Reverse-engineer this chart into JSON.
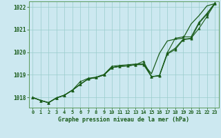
{
  "title": "Graphe pression niveau de la mer (hPa)",
  "ylim": [
    1017.55,
    1022.25
  ],
  "yticks": [
    1018,
    1019,
    1020,
    1021,
    1022
  ],
  "background_color": "#cce8f0",
  "grid_color": "#99cccc",
  "line_color": "#1a5c1a",
  "line_color_dark": "#0d3d0d",
  "series_straight": [
    1018.0,
    1017.87,
    1017.77,
    1017.98,
    1018.1,
    1018.32,
    1018.58,
    1018.82,
    1018.88,
    1019.0,
    1019.32,
    1019.38,
    1019.4,
    1019.45,
    1019.48,
    1019.05,
    1019.95,
    1020.5,
    1020.58,
    1020.62,
    1021.25,
    1021.62,
    1022.05,
    1022.15
  ],
  "series_a": [
    1018.0,
    1017.87,
    1017.77,
    1017.98,
    1018.1,
    1018.32,
    1018.58,
    1018.82,
    1018.88,
    1019.0,
    1019.32,
    1019.38,
    1019.4,
    1019.45,
    1019.6,
    1018.92,
    1018.95,
    1019.92,
    1020.12,
    1020.55,
    1020.6,
    1021.28,
    1021.68,
    1022.15
  ],
  "series_b": [
    1018.0,
    1017.87,
    1017.77,
    1017.98,
    1018.1,
    1018.32,
    1018.7,
    1018.85,
    1018.9,
    1019.02,
    1019.38,
    1019.42,
    1019.45,
    1019.48,
    1019.48,
    1018.92,
    1018.97,
    1019.98,
    1020.62,
    1020.68,
    1020.68,
    1021.32,
    1021.72,
    1022.18
  ],
  "series_c": [
    1018.0,
    1017.87,
    1017.77,
    1017.98,
    1018.1,
    1018.32,
    1018.58,
    1018.82,
    1018.88,
    1019.0,
    1019.32,
    1019.38,
    1019.4,
    1019.45,
    1019.45,
    1018.92,
    1018.97,
    1019.95,
    1020.18,
    1020.58,
    1020.62,
    1021.05,
    1021.58,
    1022.15
  ],
  "figsize": [
    3.2,
    2.0
  ],
  "dpi": 100
}
